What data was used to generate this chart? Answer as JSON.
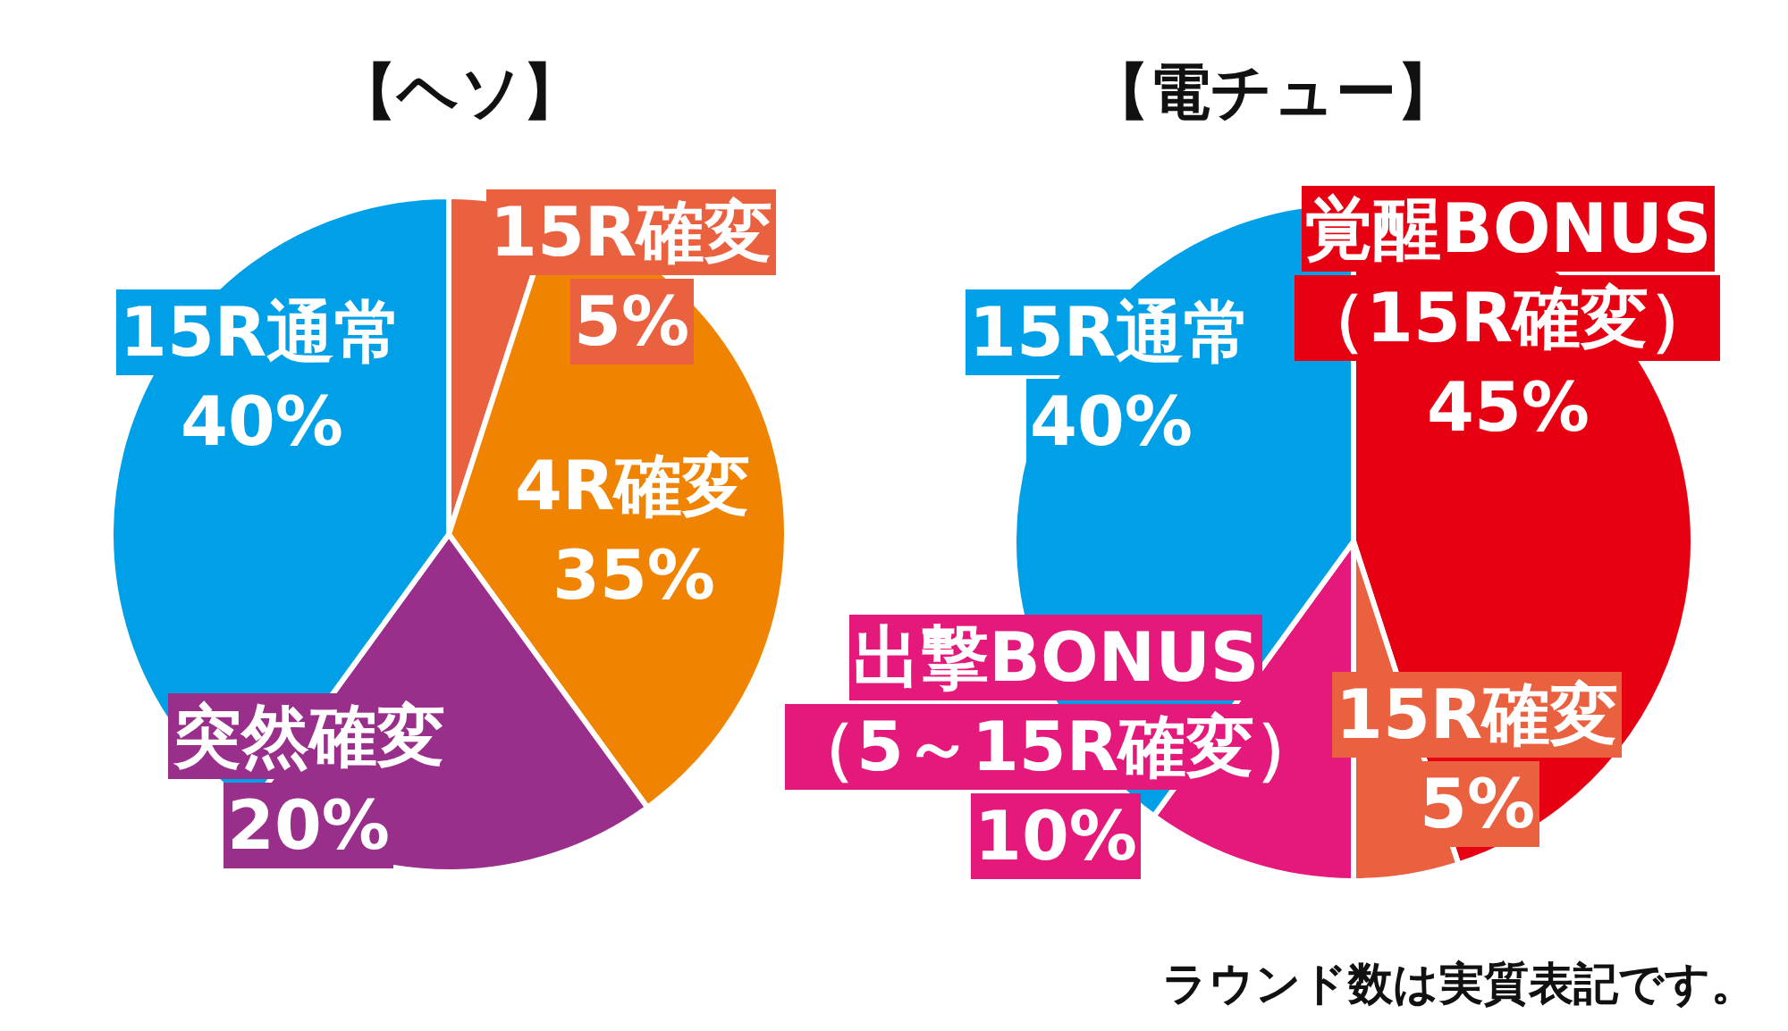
{
  "chart_data": [
    {
      "type": "pie",
      "title": "【ヘソ】",
      "categories": [
        "15R確変",
        "4R確変",
        "突然確変",
        "15R通常"
      ],
      "values": [
        5,
        35,
        20,
        40
      ],
      "colors": [
        "#ea6140",
        "#f08300",
        "#9a2e8b",
        "#00a0e9"
      ],
      "value_labels": [
        "5%",
        "35%",
        "20%",
        "40%"
      ]
    },
    {
      "type": "pie",
      "title": "【電チュー】",
      "categories": [
        "覚醒BONUS\n（15R確変）",
        "15R確変",
        "出撃BONUS\n（5～15R確変）",
        "15R通常"
      ],
      "values": [
        45,
        5,
        10,
        40
      ],
      "colors": [
        "#e60012",
        "#ea6140",
        "#e4197b",
        "#00a0e9"
      ],
      "value_labels": [
        "45%",
        "5%",
        "10%",
        "40%"
      ],
      "annotations": [
        "ラウンド数は実質表記です。"
      ]
    }
  ]
}
